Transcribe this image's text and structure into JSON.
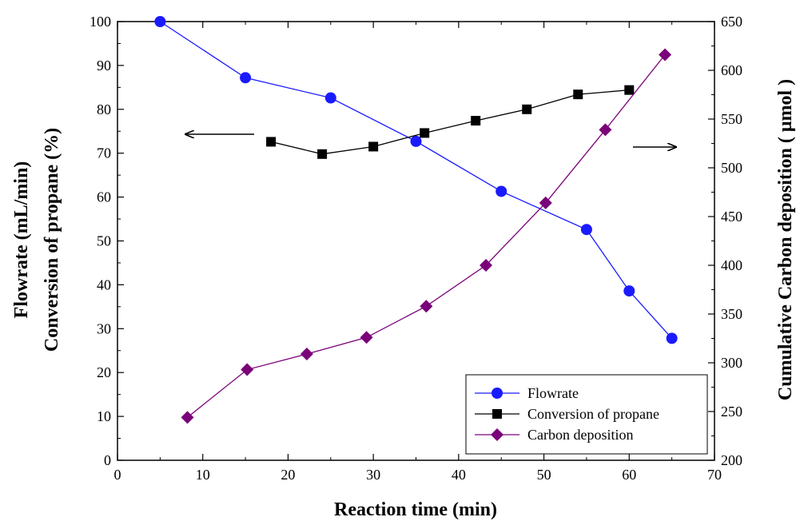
{
  "chart_data": {
    "type": "line",
    "xlabel": "Reaction time (min)",
    "ylabel_left_line1": "Flowrate (mL/min)",
    "ylabel_left_line2": "Conversion of propane (%)",
    "ylabel_right": "Cumulative Carbon deposition ( μmol )",
    "xlim": [
      0,
      70
    ],
    "ylim_left": [
      0,
      100
    ],
    "ylim_right": [
      200,
      650
    ],
    "x_ticks": [
      0,
      10,
      20,
      30,
      40,
      50,
      60,
      70
    ],
    "y_left_ticks": [
      0,
      10,
      20,
      30,
      40,
      50,
      60,
      70,
      80,
      90,
      100
    ],
    "y_right_ticks": [
      200,
      250,
      300,
      350,
      400,
      450,
      500,
      550,
      600,
      650
    ],
    "grid": false,
    "legend_position": "bottom-right",
    "series": [
      {
        "name": "Flowrate",
        "axis": "left",
        "marker": "circle",
        "color": "#1a1aff",
        "x": [
          5,
          15,
          25,
          35,
          45,
          55,
          60,
          65
        ],
        "y": [
          100,
          87.2,
          82.6,
          72.7,
          61.3,
          52.6,
          38.6,
          27.8
        ]
      },
      {
        "name": "Conversion of propane",
        "axis": "left",
        "marker": "square",
        "color": "#000000",
        "x": [
          18,
          24,
          30,
          36,
          42,
          48,
          54,
          60
        ],
        "y": [
          72.6,
          69.8,
          71.5,
          74.6,
          77.4,
          80.0,
          83.4,
          84.4
        ]
      },
      {
        "name": "Carbon deposition",
        "axis": "right",
        "marker": "diamond",
        "color": "#7a007a",
        "x": [
          8.2,
          15.2,
          22.2,
          29.2,
          36.2,
          43.2,
          50.2,
          57.2,
          64.2
        ],
        "y": [
          244,
          293,
          309,
          326,
          358,
          400,
          464,
          539,
          616
        ]
      }
    ],
    "annotations": [
      {
        "type": "arrow",
        "direction": "left",
        "points_to": "left-axis"
      },
      {
        "type": "arrow",
        "direction": "right",
        "points_to": "right-axis"
      }
    ]
  }
}
